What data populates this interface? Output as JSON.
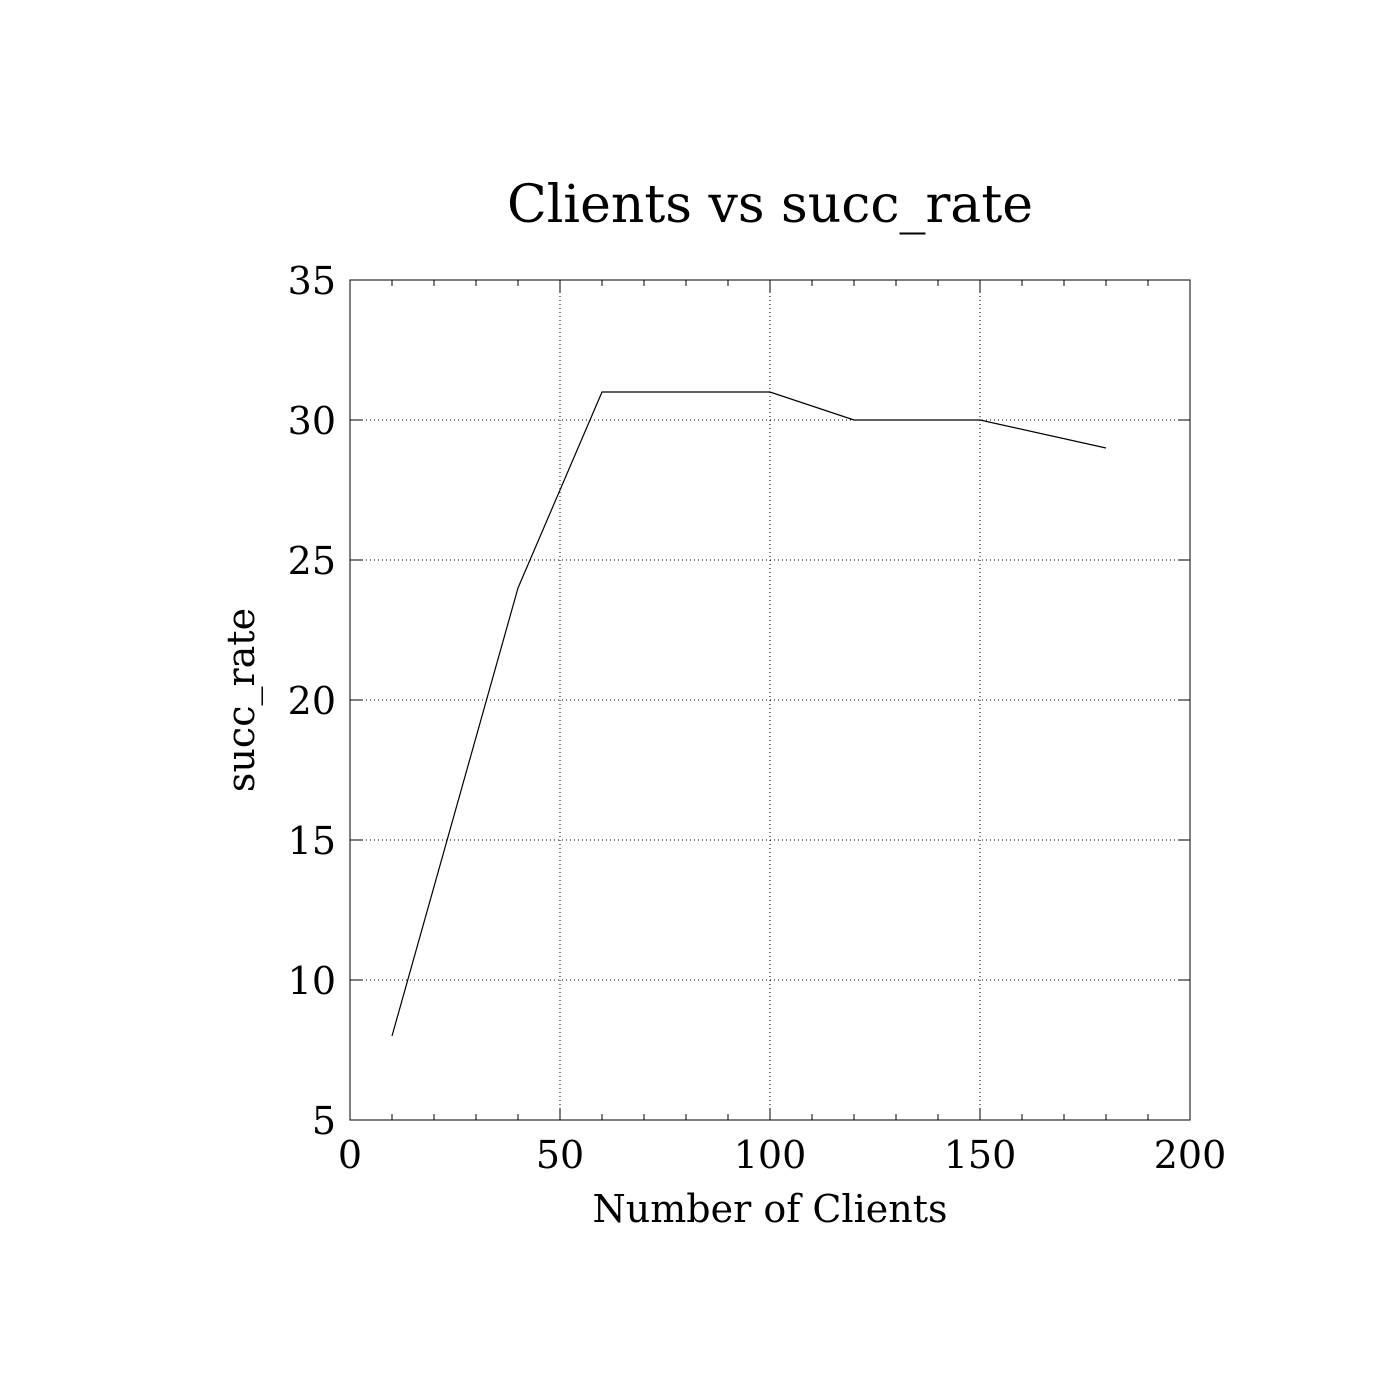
{
  "chart_data": {
    "type": "line",
    "title": "Clients vs succ_rate",
    "xlabel": "Number of Clients",
    "ylabel": "succ_rate",
    "xlim": [
      0,
      200
    ],
    "ylim": [
      5,
      35
    ],
    "x_ticks": [
      0,
      50,
      100,
      150,
      200
    ],
    "y_ticks": [
      5,
      10,
      15,
      20,
      25,
      30,
      35
    ],
    "x_minor_step": 10,
    "grid": true,
    "legend": "none",
    "series": [
      {
        "x": [
          10,
          40,
          60,
          100,
          120,
          150,
          180
        ],
        "values": [
          8,
          24,
          31,
          31,
          30,
          30,
          29
        ]
      }
    ]
  }
}
